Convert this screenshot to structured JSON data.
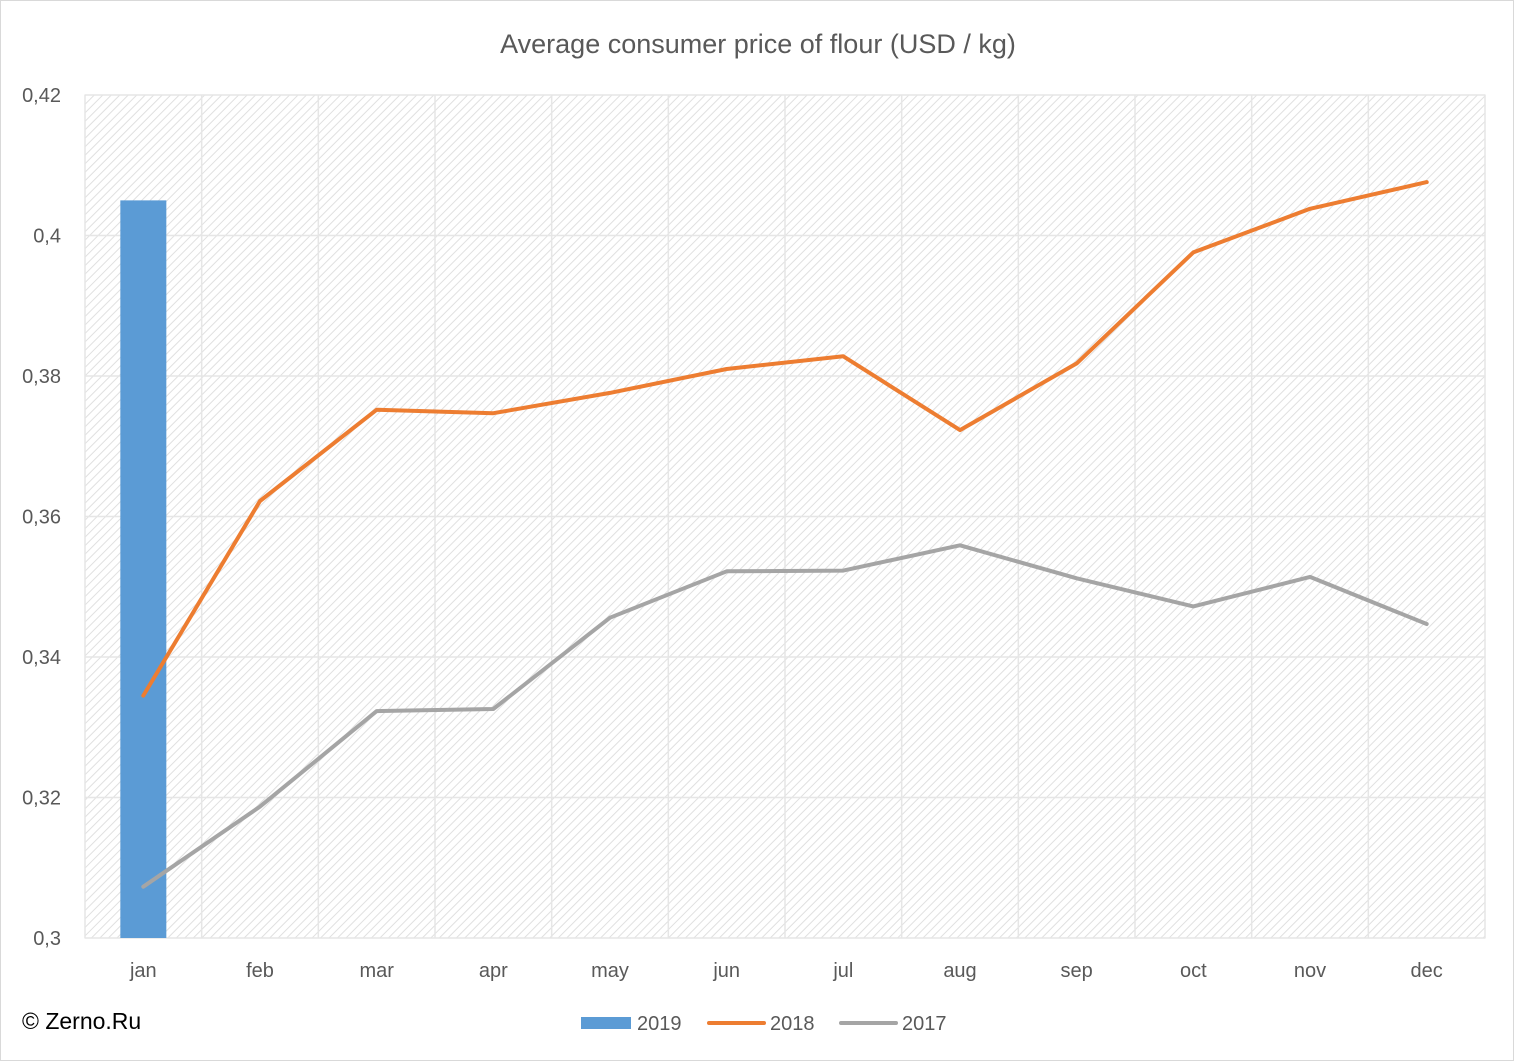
{
  "copyright": "© Zerno.Ru",
  "chart_data": {
    "type": "line",
    "title": "Average consumer price of flour (USD / kg)",
    "xlabel": "",
    "ylabel": "",
    "categories": [
      "jan",
      "feb",
      "mar",
      "apr",
      "may",
      "jun",
      "jul",
      "aug",
      "sep",
      "oct",
      "nov",
      "dec"
    ],
    "ylim": [
      0.3,
      0.42
    ],
    "yticks": [
      0.3,
      0.32,
      0.34,
      0.36,
      0.38,
      0.4,
      0.42
    ],
    "ytick_labels": [
      "0,3",
      "0,32",
      "0,34",
      "0,36",
      "0,38",
      "0,4",
      "0,42"
    ],
    "grid": true,
    "legend_position": "bottom",
    "series": [
      {
        "name": "2019",
        "kind": "bar",
        "color": "#5b9bd5",
        "values": [
          0.405,
          null,
          null,
          null,
          null,
          null,
          null,
          null,
          null,
          null,
          null,
          null
        ]
      },
      {
        "name": "2018",
        "kind": "line",
        "color": "#ed7d31",
        "values": [
          0.3345,
          0.3622,
          0.3752,
          0.3747,
          0.3776,
          0.381,
          0.3828,
          0.3723,
          0.3818,
          0.3976,
          0.4038,
          0.4076
        ]
      },
      {
        "name": "2017",
        "kind": "line",
        "color": "#a5a5a5",
        "values": [
          0.3073,
          0.3187,
          0.3323,
          0.3326,
          0.3456,
          0.3522,
          0.3523,
          0.3559,
          0.3512,
          0.3472,
          0.3514,
          0.3447
        ]
      }
    ]
  }
}
